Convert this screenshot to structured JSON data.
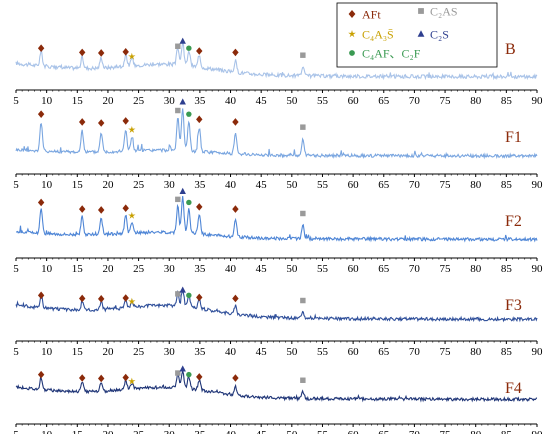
{
  "chart_data": {
    "type": "line",
    "xlim": [
      5,
      90
    ],
    "ticks": [
      5,
      10,
      15,
      20,
      25,
      30,
      35,
      40,
      45,
      50,
      55,
      60,
      65,
      70,
      75,
      80,
      85,
      90
    ],
    "grid": false,
    "legend_position": "top-center",
    "legend": [
      {
        "symbol": "diamond",
        "label": "AFt",
        "color": "#8b2a0a"
      },
      {
        "symbol": "square",
        "label": "C₂AS",
        "color": "#9a9a9a"
      },
      {
        "symbol": "star",
        "label": "C₄A₃S̄",
        "color": "#c8a000"
      },
      {
        "symbol": "triangle",
        "label": "C₂S",
        "color": "#2e3f8f"
      },
      {
        "symbol": "circle",
        "label": "C₄AF、C₂F",
        "color": "#3a9a52"
      }
    ],
    "series": [
      {
        "name": "B",
        "color": "#a9c3e8",
        "peak_scale": 0.45,
        "base": [
          0.15,
          0.22,
          0.05
        ]
      },
      {
        "name": "F1",
        "color": "#7aa6e0",
        "peak_scale": 1.0,
        "base": [
          0.08,
          0.12,
          0.04
        ]
      },
      {
        "name": "F2",
        "color": "#4f86d6",
        "peak_scale": 0.85,
        "base": [
          0.1,
          0.15,
          0.05
        ]
      },
      {
        "name": "F3",
        "color": "#2f4f9a",
        "peak_scale": 0.4,
        "base": [
          0.2,
          0.28,
          0.05
        ]
      },
      {
        "name": "F4",
        "color": "#1f3577",
        "peak_scale": 0.45,
        "base": [
          0.18,
          0.25,
          0.05
        ]
      }
    ],
    "peaks": [
      {
        "x": 9.1,
        "h": 0.55,
        "phase": "AFt"
      },
      {
        "x": 15.8,
        "h": 0.4,
        "phase": "AFt"
      },
      {
        "x": 18.9,
        "h": 0.38,
        "phase": "AFt"
      },
      {
        "x": 22.9,
        "h": 0.42,
        "phase": "AFt"
      },
      {
        "x": 23.9,
        "h": 0.25,
        "phase": "C4A3S"
      },
      {
        "x": 31.4,
        "h": 0.62,
        "phase": "C2AS"
      },
      {
        "x": 32.2,
        "h": 0.8,
        "phase": "C2S"
      },
      {
        "x": 33.2,
        "h": 0.55,
        "phase": "C4AF"
      },
      {
        "x": 34.9,
        "h": 0.45,
        "phase": "AFt"
      },
      {
        "x": 40.8,
        "h": 0.4,
        "phase": "AFt"
      },
      {
        "x": 51.8,
        "h": 0.3,
        "phase": "C2AS"
      }
    ]
  }
}
